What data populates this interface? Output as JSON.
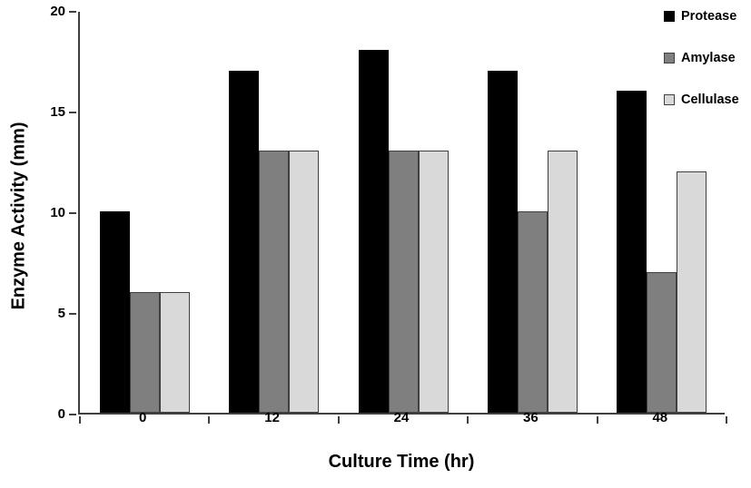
{
  "chart_data": {
    "type": "bar",
    "title": "",
    "xlabel": "Culture Time (hr)",
    "ylabel": "Enzyme Activity (mm)",
    "categories": [
      "0",
      "12",
      "24",
      "36",
      "48"
    ],
    "series": [
      {
        "name": "Protease",
        "values": [
          10,
          17,
          18,
          17,
          16
        ],
        "fill": "#000000",
        "border": "#000000"
      },
      {
        "name": "Amylase",
        "values": [
          6,
          13,
          13,
          10,
          7
        ],
        "fill": "#7f7f7f",
        "border": "#404040"
      },
      {
        "name": "Cellulase",
        "values": [
          6,
          13,
          13,
          13,
          12
        ],
        "fill": "#d9d9d9",
        "border": "#404040"
      }
    ],
    "ylim": [
      0,
      20
    ],
    "yticks": [
      0,
      5,
      10,
      15,
      20
    ],
    "grid": false,
    "legend_position": "top-right",
    "axis_color": "#3f3f3f",
    "background": "#ffffff"
  }
}
